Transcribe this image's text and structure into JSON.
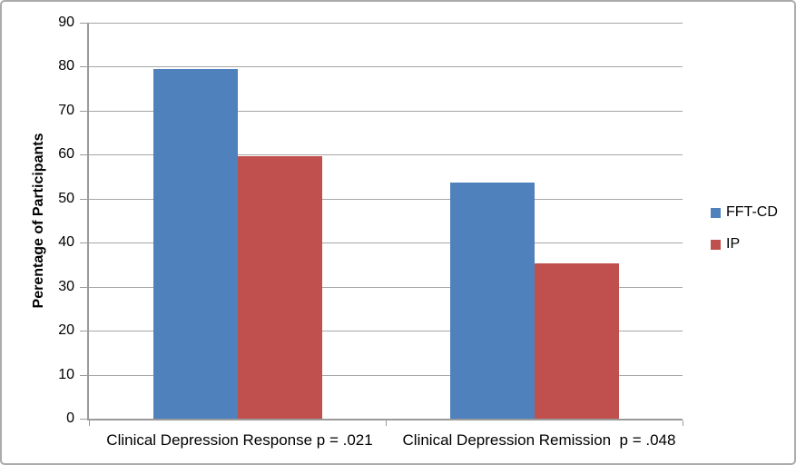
{
  "chart_data": {
    "type": "bar",
    "title": "",
    "categories": [
      "Clinical Depression Response p = .021",
      "Clinical Depression Remission  p = .048"
    ],
    "series": [
      {
        "name": "FFT-CD",
        "color": "#4F81BD",
        "values": [
          79.5,
          53.7
        ]
      },
      {
        "name": "IP",
        "color": "#C0504D",
        "values": [
          59.7,
          35.4
        ]
      }
    ],
    "xlabel": "",
    "ylabel": "Perentage of Participants",
    "ylim": [
      0,
      90
    ],
    "yticks": [
      0,
      10,
      20,
      30,
      40,
      50,
      60,
      70,
      80,
      90
    ],
    "grid": true,
    "legend_position": "right"
  },
  "colors": {
    "background": "#FFFFFF",
    "border": "#ABABAB",
    "axis": "#9A9A9A",
    "grid": "#A6A6A6",
    "text": "#000000"
  }
}
